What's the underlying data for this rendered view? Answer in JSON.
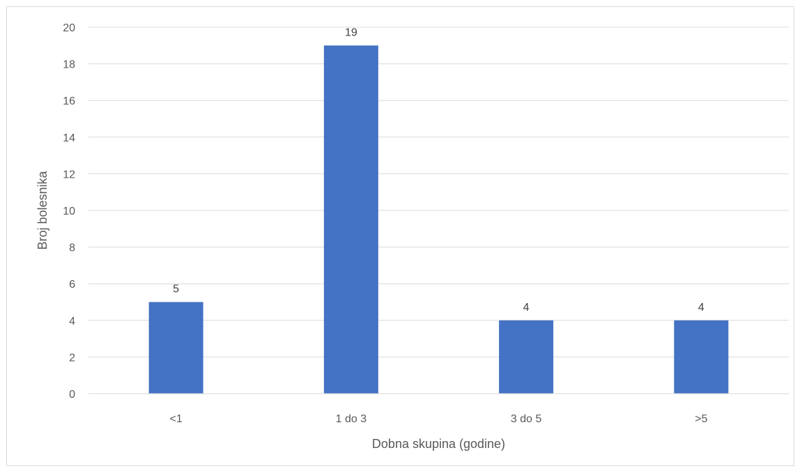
{
  "chart_data": {
    "type": "bar",
    "categories": [
      "<1",
      "1 do 3",
      "3 do 5",
      ">5"
    ],
    "values": [
      5,
      19,
      4,
      4
    ],
    "title": "",
    "xlabel": "Dobna skupina (godine)",
    "ylabel": "Broj bolesnika",
    "ylim": [
      0,
      20
    ],
    "yticks": [
      0,
      2,
      4,
      6,
      8,
      10,
      12,
      14,
      16,
      18,
      20
    ],
    "grid": true,
    "legend": "none",
    "data_labels": true,
    "bar_color": "#4472c4",
    "grid_color": "#d9d9d9"
  }
}
